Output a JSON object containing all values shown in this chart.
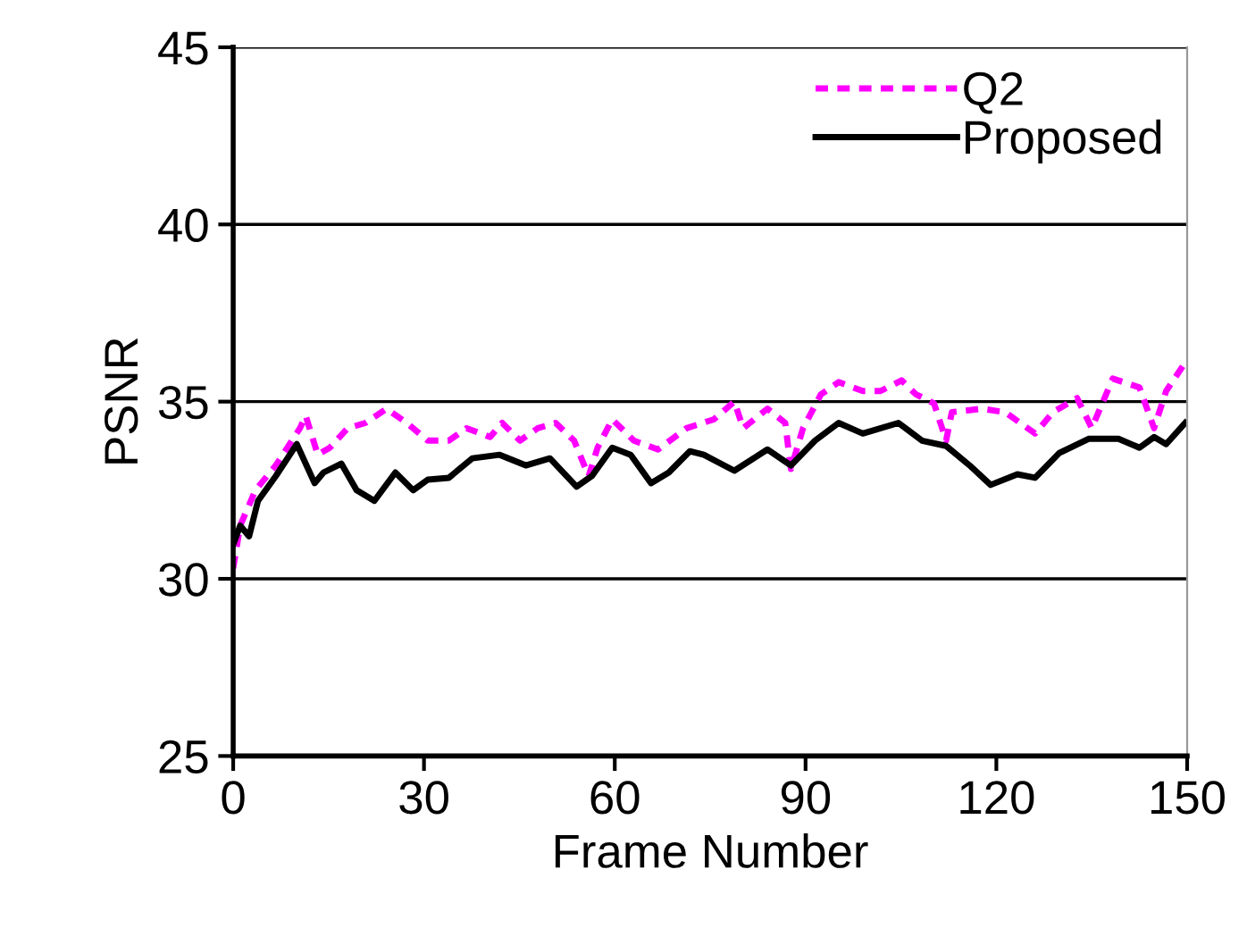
{
  "chart_data": {
    "type": "line",
    "xlabel": "Frame Number",
    "ylabel": "PSNR",
    "xlim": [
      0,
      150
    ],
    "ylim": [
      25,
      45
    ],
    "xticks": [
      0,
      30,
      60,
      90,
      120,
      150
    ],
    "yticks": [
      25,
      30,
      35,
      40,
      45
    ],
    "grid": "y",
    "legend": "top right",
    "marker": "none",
    "series": [
      {
        "name": "Q2",
        "color": "#ff00ff",
        "line_style": "dashed",
        "x": [
          0,
          1.1,
          3.5,
          6.7,
          10.5,
          11.4,
          13.3,
          15.2,
          18,
          20.8,
          24.1,
          27.3,
          30.6,
          33.9,
          36.7,
          40.4,
          42.3,
          45.1,
          47.9,
          50.7,
          53.6,
          55.9,
          57.3,
          59.6,
          63,
          66.8,
          71.3,
          75.6,
          78.8,
          80.2,
          84,
          86.8,
          87.7,
          89.6,
          92.4,
          95.2,
          99,
          101.8,
          105.1,
          107.4,
          110.2,
          112.1,
          113,
          117.7,
          121.4,
          126.1,
          128.9,
          132.7,
          135,
          138.3,
          142.5,
          144.8,
          146.7,
          149.5
        ],
        "values": [
          30.3,
          31.5,
          32.5,
          33.2,
          34.25,
          34.6,
          33.5,
          33.7,
          34.25,
          34.4,
          34.8,
          34.4,
          33.9,
          33.9,
          34.25,
          34.0,
          34.4,
          33.9,
          34.25,
          34.4,
          33.9,
          32.9,
          33.7,
          34.5,
          33.9,
          33.65,
          34.25,
          34.5,
          35.0,
          34.25,
          34.8,
          34.4,
          33.1,
          34.25,
          35.2,
          35.55,
          35.3,
          35.3,
          35.6,
          35.2,
          34.95,
          33.9,
          34.7,
          34.8,
          34.7,
          34.1,
          34.7,
          35.1,
          34.25,
          35.65,
          35.4,
          34.25,
          35.3,
          36.05
        ]
      },
      {
        "name": "Proposed",
        "color": "#000000",
        "line_style": "solid",
        "x": [
          0,
          1.1,
          2.5,
          3.9,
          6.7,
          10,
          12.8,
          14.2,
          17,
          19.4,
          22.2,
          25.5,
          28.3,
          30.6,
          33.9,
          37.6,
          41.9,
          46,
          49.8,
          54,
          56.4,
          59.6,
          62.5,
          65.7,
          68.5,
          71.8,
          74,
          78.8,
          84,
          87.7,
          91.5,
          95.2,
          99,
          104.6,
          108.3,
          112.1,
          115.8,
          119.1,
          123.3,
          126.1,
          129.9,
          134.5,
          139.2,
          142.5,
          144.8,
          146.7,
          149.7
        ],
        "values": [
          30.97,
          31.5,
          31.2,
          32.2,
          32.9,
          33.8,
          32.7,
          33.0,
          33.25,
          32.5,
          32.2,
          33.0,
          32.5,
          32.8,
          32.85,
          33.4,
          33.5,
          33.2,
          33.4,
          32.6,
          32.9,
          33.7,
          33.5,
          32.7,
          33.0,
          33.6,
          33.5,
          33.05,
          33.65,
          33.2,
          33.9,
          34.4,
          34.1,
          34.4,
          33.9,
          33.75,
          33.2,
          32.65,
          32.95,
          32.85,
          33.55,
          33.95,
          33.95,
          33.7,
          34.0,
          33.8,
          34.4
        ]
      }
    ]
  }
}
